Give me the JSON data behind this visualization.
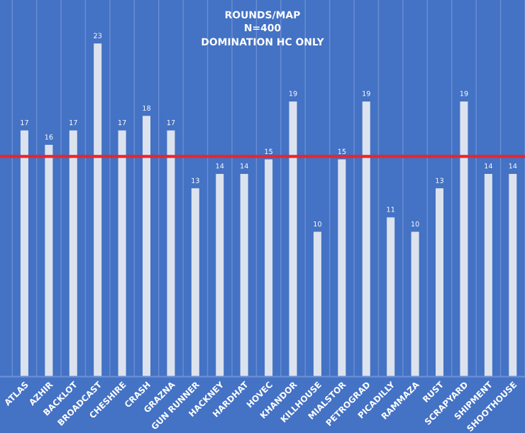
{
  "chart_data": {
    "type": "bar",
    "title": "ROUNDS/MAP",
    "subtitle": "N=400\nDOMINATION HC ONLY",
    "categories": [
      "ATLAS",
      "AZHIR",
      "BACKLOT",
      "BROADCAST",
      "CHESHIRE",
      "CRASH",
      "GRAZNA",
      "GUN RUNNER",
      "HACKNEY",
      "HARDHAT",
      "HOVEC",
      "KHANDOR",
      "KILLHOUSE",
      "MIALSTOR",
      "PETROGRAD",
      "PICADILLY",
      "RAMMAZA",
      "RUST",
      "SCRAPYARD",
      "SHIPMENT",
      "SHOOTHOUSE"
    ],
    "values": [
      17,
      16,
      17,
      23,
      17,
      18,
      17,
      13,
      14,
      14,
      15,
      19,
      10,
      15,
      19,
      11,
      10,
      13,
      19,
      14,
      14
    ],
    "color": "#dce3ee",
    "data_labels": true,
    "ylim": [
      0,
      26
    ],
    "grid": "x",
    "ref_lines": [
      {
        "axis": "y",
        "value": 15.2,
        "color": "#e8262a"
      }
    ]
  }
}
